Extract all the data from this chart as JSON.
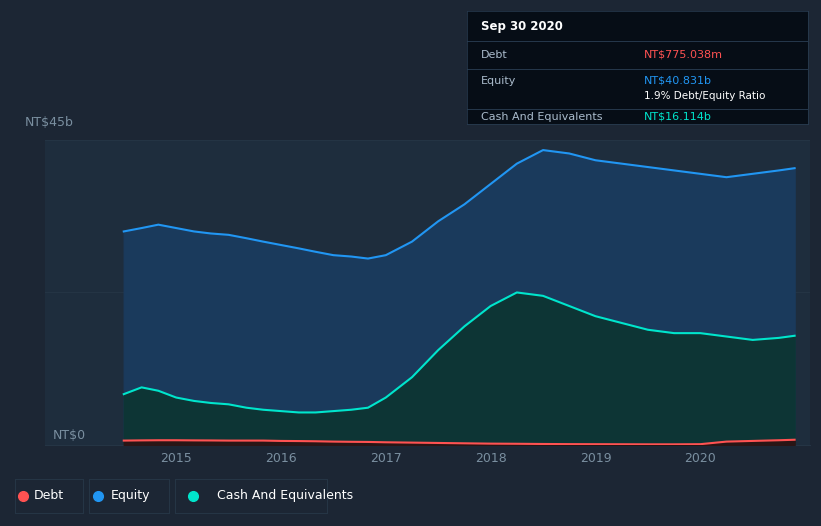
{
  "bg_color": "#1c2634",
  "plot_bg_color": "#1e2d3d",
  "title_label": "NT$45b",
  "zero_label": "NT$0",
  "ylim": [
    0,
    45
  ],
  "xlim": [
    2013.75,
    2021.05
  ],
  "equity_color": "#2196f3",
  "equity_fill": "#1a3a5c",
  "cash_color": "#00e5cc",
  "cash_fill": "#0d3535",
  "debt_color": "#ff5252",
  "debt_fill": "#2a1515",
  "grid_color": "#253545",
  "axis_text_color": "#7a8fa0",
  "tooltip_bg": "#060d16",
  "tooltip_border": "#2a3f55",
  "tooltip_title": "Sep 30 2020",
  "tooltip_debt_label": "Debt",
  "tooltip_debt_value": "NT$775.038m",
  "tooltip_equity_label": "Equity",
  "tooltip_equity_value": "NT$40.831b",
  "tooltip_ratio": "1.9% Debt/Equity Ratio",
  "tooltip_cash_label": "Cash And Equivalents",
  "tooltip_cash_value": "NT$16.114b",
  "legend_debt": "Debt",
  "legend_equity": "Equity",
  "legend_cash": "Cash And Equivalents",
  "equity_x": [
    2014.5,
    2014.67,
    2014.83,
    2015.0,
    2015.17,
    2015.33,
    2015.5,
    2015.67,
    2015.83,
    2016.0,
    2016.17,
    2016.33,
    2016.5,
    2016.67,
    2016.83,
    2017.0,
    2017.25,
    2017.5,
    2017.75,
    2018.0,
    2018.25,
    2018.5,
    2018.75,
    2019.0,
    2019.25,
    2019.5,
    2019.75,
    2020.0,
    2020.25,
    2020.5,
    2020.75,
    2020.9
  ],
  "equity_y": [
    31.5,
    32.0,
    32.5,
    32.0,
    31.5,
    31.2,
    31.0,
    30.5,
    30.0,
    29.5,
    29.0,
    28.5,
    28.0,
    27.8,
    27.5,
    28.0,
    30.0,
    33.0,
    35.5,
    38.5,
    41.5,
    43.5,
    43.0,
    42.0,
    41.5,
    41.0,
    40.5,
    40.0,
    39.5,
    40.0,
    40.5,
    40.831
  ],
  "cash_x": [
    2014.5,
    2014.67,
    2014.83,
    2015.0,
    2015.17,
    2015.33,
    2015.5,
    2015.67,
    2015.83,
    2016.0,
    2016.17,
    2016.33,
    2016.5,
    2016.67,
    2016.83,
    2017.0,
    2017.25,
    2017.5,
    2017.75,
    2018.0,
    2018.25,
    2018.5,
    2018.75,
    2019.0,
    2019.25,
    2019.5,
    2019.75,
    2020.0,
    2020.25,
    2020.5,
    2020.75,
    2020.9
  ],
  "cash_y": [
    7.5,
    8.5,
    8.0,
    7.0,
    6.5,
    6.2,
    6.0,
    5.5,
    5.2,
    5.0,
    4.8,
    4.8,
    5.0,
    5.2,
    5.5,
    7.0,
    10.0,
    14.0,
    17.5,
    20.5,
    22.5,
    22.0,
    20.5,
    19.0,
    18.0,
    17.0,
    16.5,
    16.5,
    16.0,
    15.5,
    15.8,
    16.114
  ],
  "debt_x": [
    2014.5,
    2014.67,
    2014.83,
    2015.0,
    2015.17,
    2015.33,
    2015.5,
    2015.67,
    2015.83,
    2016.0,
    2016.17,
    2016.33,
    2016.5,
    2016.67,
    2016.83,
    2017.0,
    2017.25,
    2017.5,
    2017.75,
    2018.0,
    2018.25,
    2018.5,
    2018.75,
    2019.0,
    2019.25,
    2019.5,
    2019.75,
    2020.0,
    2020.25,
    2020.5,
    2020.75,
    2020.9
  ],
  "debt_y": [
    0.65,
    0.68,
    0.7,
    0.7,
    0.68,
    0.67,
    0.65,
    0.65,
    0.65,
    0.6,
    0.58,
    0.55,
    0.5,
    0.47,
    0.45,
    0.4,
    0.35,
    0.3,
    0.25,
    0.2,
    0.18,
    0.15,
    0.13,
    0.12,
    0.11,
    0.1,
    0.1,
    0.12,
    0.5,
    0.6,
    0.7,
    0.775
  ]
}
